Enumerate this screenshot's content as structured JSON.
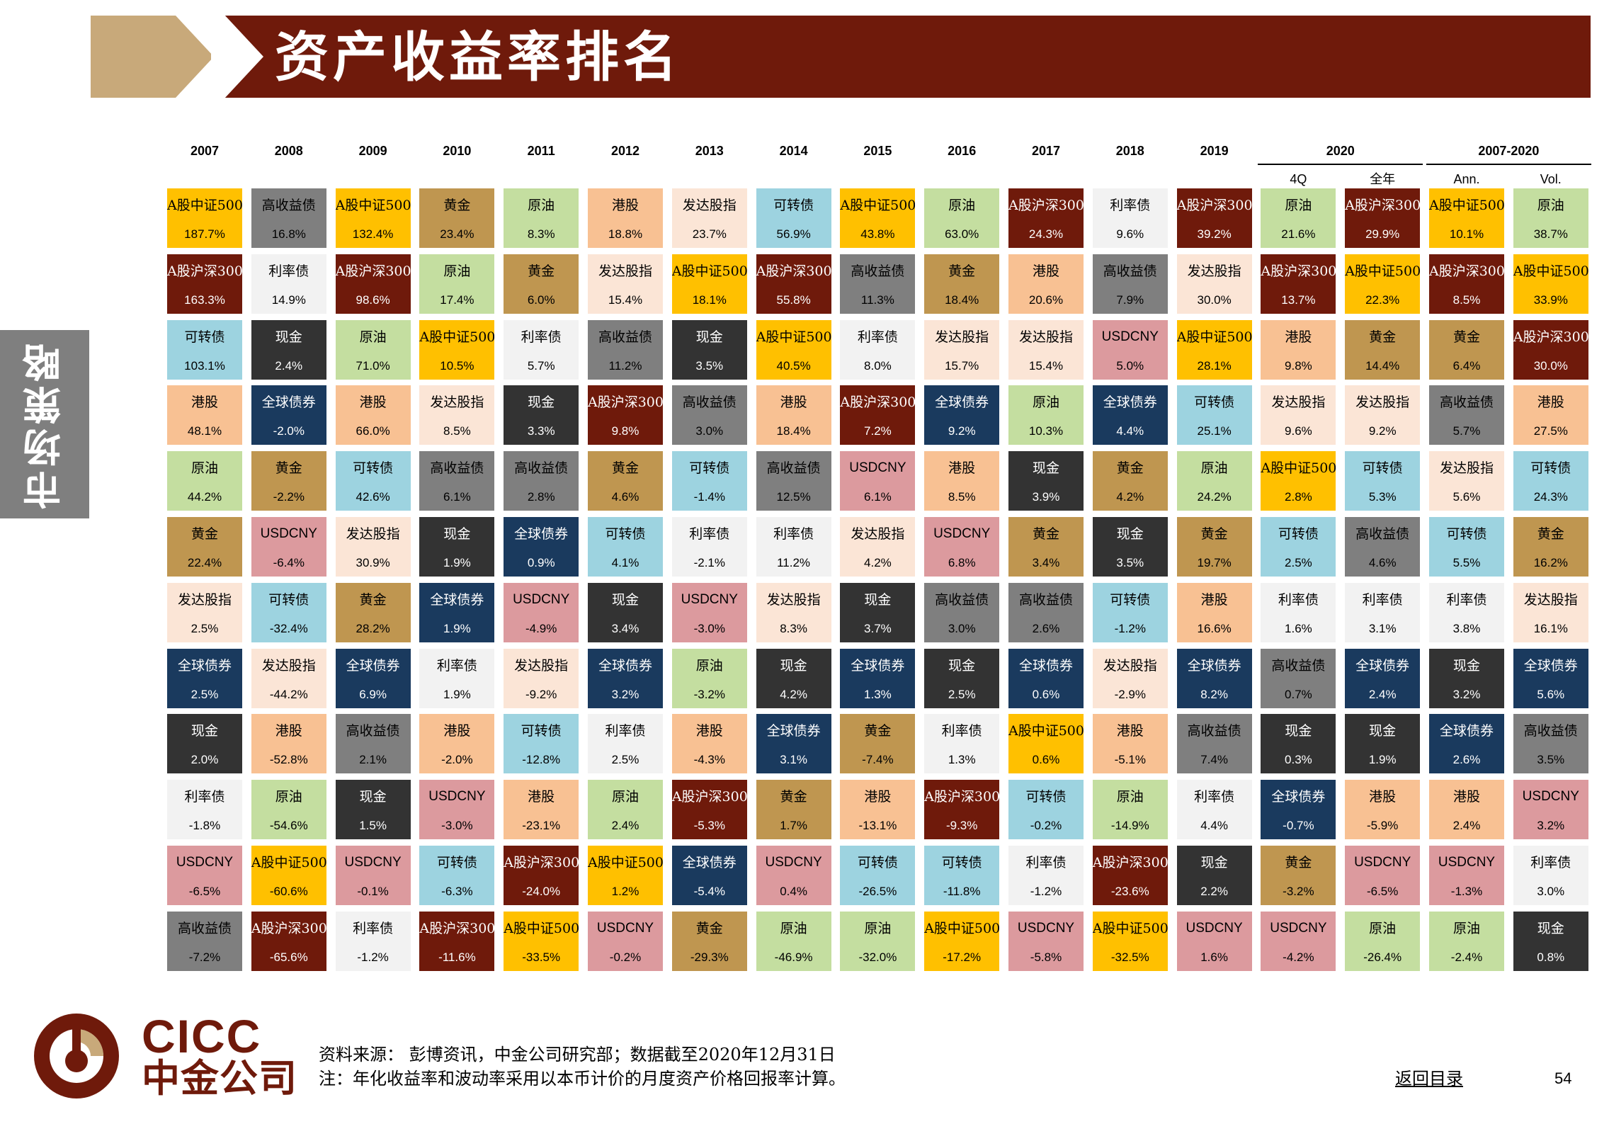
{
  "header": {
    "title": "资产收益率排名"
  },
  "sidebar": {
    "label": "市场策略"
  },
  "chart_data": {
    "type": "table",
    "columns": [
      {
        "top": "2007",
        "sub": ""
      },
      {
        "top": "2008",
        "sub": ""
      },
      {
        "top": "2009",
        "sub": ""
      },
      {
        "top": "2010",
        "sub": ""
      },
      {
        "top": "2011",
        "sub": ""
      },
      {
        "top": "2012",
        "sub": ""
      },
      {
        "top": "2013",
        "sub": ""
      },
      {
        "top": "2014",
        "sub": ""
      },
      {
        "top": "2015",
        "sub": ""
      },
      {
        "top": "2016",
        "sub": ""
      },
      {
        "top": "2017",
        "sub": ""
      },
      {
        "top": "2018",
        "sub": ""
      },
      {
        "top": "2019",
        "sub": ""
      },
      {
        "top": "",
        "sub": "4Q"
      },
      {
        "top": "",
        "sub": "全年"
      },
      {
        "top": "",
        "sub": "Ann."
      },
      {
        "top": "",
        "sub": "Vol."
      }
    ],
    "groups": [
      {
        "label": "2020",
        "first_col": 13,
        "last_col": 14
      },
      {
        "label": "2007-2020",
        "first_col": 15,
        "last_col": 16
      }
    ],
    "asset_colors": {
      "A股中证500": {
        "bg": "#ffc000",
        "fg": "#000000"
      },
      "A股沪深300": {
        "bg": "#6f1a0b",
        "fg": "#ffffff"
      },
      "高收益债": {
        "bg": "#7f7f7f",
        "fg": "#000000"
      },
      "黄金": {
        "bg": "#bf9650",
        "fg": "#000000"
      },
      "原油": {
        "bg": "#c4dea0",
        "fg": "#000000"
      },
      "港股": {
        "bg": "#f8c193",
        "fg": "#000000"
      },
      "发达股指": {
        "bg": "#fbe5d6",
        "fg": "#000000"
      },
      "可转债": {
        "bg": "#9dd3e0",
        "fg": "#000000"
      },
      "利率债": {
        "bg": "#f2f2f2",
        "fg": "#000000"
      },
      "现金": {
        "bg": "#333333",
        "fg": "#ffffff"
      },
      "全球债券": {
        "bg": "#1a3a5e",
        "fg": "#ffffff"
      },
      "USDCNY": {
        "bg": "#dc9a9e",
        "fg": "#000000"
      }
    },
    "columns_data": [
      [
        [
          "A股中证500",
          "187.7%"
        ],
        [
          "A股沪深300",
          "163.3%"
        ],
        [
          "可转债",
          "103.1%"
        ],
        [
          "港股",
          "48.1%"
        ],
        [
          "原油",
          "44.2%"
        ],
        [
          "黄金",
          "22.4%"
        ],
        [
          "发达股指",
          "2.5%"
        ],
        [
          "全球债券",
          "2.5%"
        ],
        [
          "现金",
          "2.0%"
        ],
        [
          "利率债",
          "-1.8%"
        ],
        [
          "USDCNY",
          "-6.5%"
        ],
        [
          "高收益债",
          "-7.2%"
        ]
      ],
      [
        [
          "高收益债",
          "16.8%"
        ],
        [
          "利率债",
          "14.9%"
        ],
        [
          "现金",
          "2.4%"
        ],
        [
          "全球债券",
          "-2.0%"
        ],
        [
          "黄金",
          "-2.2%"
        ],
        [
          "USDCNY",
          "-6.4%"
        ],
        [
          "可转债",
          "-32.4%"
        ],
        [
          "发达股指",
          "-44.2%"
        ],
        [
          "港股",
          "-52.8%"
        ],
        [
          "原油",
          "-54.6%"
        ],
        [
          "A股中证500",
          "-60.6%"
        ],
        [
          "A股沪深300",
          "-65.6%"
        ]
      ],
      [
        [
          "A股中证500",
          "132.4%"
        ],
        [
          "A股沪深300",
          "98.6%"
        ],
        [
          "原油",
          "71.0%"
        ],
        [
          "港股",
          "66.0%"
        ],
        [
          "可转债",
          "42.6%"
        ],
        [
          "发达股指",
          "30.9%"
        ],
        [
          "黄金",
          "28.2%"
        ],
        [
          "全球债券",
          "6.9%"
        ],
        [
          "高收益债",
          "2.1%"
        ],
        [
          "现金",
          "1.5%"
        ],
        [
          "USDCNY",
          "-0.1%"
        ],
        [
          "利率债",
          "-1.2%"
        ]
      ],
      [
        [
          "黄金",
          "23.4%"
        ],
        [
          "原油",
          "17.4%"
        ],
        [
          "A股中证500",
          "10.5%"
        ],
        [
          "发达股指",
          "8.5%"
        ],
        [
          "高收益债",
          "6.1%"
        ],
        [
          "现金",
          "1.9%"
        ],
        [
          "全球债券",
          "1.9%"
        ],
        [
          "利率债",
          "1.9%"
        ],
        [
          "港股",
          "-2.0%"
        ],
        [
          "USDCNY",
          "-3.0%"
        ],
        [
          "可转债",
          "-6.3%"
        ],
        [
          "A股沪深300",
          "-11.6%"
        ]
      ],
      [
        [
          "原油",
          "8.3%"
        ],
        [
          "黄金",
          "6.0%"
        ],
        [
          "利率债",
          "5.7%"
        ],
        [
          "现金",
          "3.3%"
        ],
        [
          "高收益债",
          "2.8%"
        ],
        [
          "全球债券",
          "0.9%"
        ],
        [
          "USDCNY",
          "-4.9%"
        ],
        [
          "发达股指",
          "-9.2%"
        ],
        [
          "可转债",
          "-12.8%"
        ],
        [
          "港股",
          "-23.1%"
        ],
        [
          "A股沪深300",
          "-24.0%"
        ],
        [
          "A股中证500",
          "-33.5%"
        ]
      ],
      [
        [
          "港股",
          "18.8%"
        ],
        [
          "发达股指",
          "15.4%"
        ],
        [
          "高收益债",
          "11.2%"
        ],
        [
          "A股沪深300",
          "9.8%"
        ],
        [
          "黄金",
          "4.6%"
        ],
        [
          "可转债",
          "4.1%"
        ],
        [
          "现金",
          "3.4%"
        ],
        [
          "全球债券",
          "3.2%"
        ],
        [
          "利率债",
          "2.5%"
        ],
        [
          "原油",
          "2.4%"
        ],
        [
          "A股中证500",
          "1.2%"
        ],
        [
          "USDCNY",
          "-0.2%"
        ]
      ],
      [
        [
          "发达股指",
          "23.7%"
        ],
        [
          "A股中证500",
          "18.1%"
        ],
        [
          "现金",
          "3.5%"
        ],
        [
          "高收益债",
          "3.0%"
        ],
        [
          "可转债",
          "-1.4%"
        ],
        [
          "利率债",
          "-2.1%"
        ],
        [
          "USDCNY",
          "-3.0%"
        ],
        [
          "原油",
          "-3.2%"
        ],
        [
          "港股",
          "-4.3%"
        ],
        [
          "A股沪深300",
          "-5.3%"
        ],
        [
          "全球债券",
          "-5.4%"
        ],
        [
          "黄金",
          "-29.3%"
        ]
      ],
      [
        [
          "可转债",
          "56.9%"
        ],
        [
          "A股沪深300",
          "55.8%"
        ],
        [
          "A股中证500",
          "40.5%"
        ],
        [
          "港股",
          "18.4%"
        ],
        [
          "高收益债",
          "12.5%"
        ],
        [
          "利率债",
          "11.2%"
        ],
        [
          "发达股指",
          "8.3%"
        ],
        [
          "现金",
          "4.2%"
        ],
        [
          "全球债券",
          "3.1%"
        ],
        [
          "黄金",
          "1.7%"
        ],
        [
          "USDCNY",
          "0.4%"
        ],
        [
          "原油",
          "-46.9%"
        ]
      ],
      [
        [
          "A股中证500",
          "43.8%"
        ],
        [
          "高收益债",
          "11.3%"
        ],
        [
          "利率债",
          "8.0%"
        ],
        [
          "A股沪深300",
          "7.2%"
        ],
        [
          "USDCNY",
          "6.1%"
        ],
        [
          "发达股指",
          "4.2%"
        ],
        [
          "现金",
          "3.7%"
        ],
        [
          "全球债券",
          "1.3%"
        ],
        [
          "黄金",
          "-7.4%"
        ],
        [
          "港股",
          "-13.1%"
        ],
        [
          "可转债",
          "-26.5%"
        ],
        [
          "原油",
          "-32.0%"
        ]
      ],
      [
        [
          "原油",
          "63.0%"
        ],
        [
          "黄金",
          "18.4%"
        ],
        [
          "发达股指",
          "15.7%"
        ],
        [
          "全球债券",
          "9.2%"
        ],
        [
          "港股",
          "8.5%"
        ],
        [
          "USDCNY",
          "6.8%"
        ],
        [
          "高收益债",
          "3.0%"
        ],
        [
          "现金",
          "2.5%"
        ],
        [
          "利率债",
          "1.3%"
        ],
        [
          "A股沪深300",
          "-9.3%"
        ],
        [
          "可转债",
          "-11.8%"
        ],
        [
          "A股中证500",
          "-17.2%"
        ]
      ],
      [
        [
          "A股沪深300",
          "24.3%"
        ],
        [
          "港股",
          "20.6%"
        ],
        [
          "发达股指",
          "15.4%"
        ],
        [
          "原油",
          "10.3%"
        ],
        [
          "现金",
          "3.9%"
        ],
        [
          "黄金",
          "3.4%"
        ],
        [
          "高收益债",
          "2.6%"
        ],
        [
          "全球债券",
          "0.6%"
        ],
        [
          "A股中证500",
          "0.6%"
        ],
        [
          "可转债",
          "-0.2%"
        ],
        [
          "利率债",
          "-1.2%"
        ],
        [
          "USDCNY",
          "-5.8%"
        ]
      ],
      [
        [
          "利率债",
          "9.6%"
        ],
        [
          "高收益债",
          "7.9%"
        ],
        [
          "USDCNY",
          "5.0%"
        ],
        [
          "全球债券",
          "4.4%"
        ],
        [
          "黄金",
          "4.2%"
        ],
        [
          "现金",
          "3.5%"
        ],
        [
          "可转债",
          "-1.2%"
        ],
        [
          "发达股指",
          "-2.9%"
        ],
        [
          "港股",
          "-5.1%"
        ],
        [
          "原油",
          "-14.9%"
        ],
        [
          "A股沪深300",
          "-23.6%"
        ],
        [
          "A股中证500",
          "-32.5%"
        ]
      ],
      [
        [
          "A股沪深300",
          "39.2%"
        ],
        [
          "发达股指",
          "30.0%"
        ],
        [
          "A股中证500",
          "28.1%"
        ],
        [
          "可转债",
          "25.1%"
        ],
        [
          "原油",
          "24.2%"
        ],
        [
          "黄金",
          "19.7%"
        ],
        [
          "港股",
          "16.6%"
        ],
        [
          "全球债券",
          "8.2%"
        ],
        [
          "高收益债",
          "7.4%"
        ],
        [
          "利率债",
          "4.4%"
        ],
        [
          "现金",
          "2.2%"
        ],
        [
          "USDCNY",
          "1.6%"
        ]
      ],
      [
        [
          "原油",
          "21.6%"
        ],
        [
          "A股沪深300",
          "13.7%"
        ],
        [
          "港股",
          "9.8%"
        ],
        [
          "发达股指",
          "9.6%"
        ],
        [
          "A股中证500",
          "2.8%"
        ],
        [
          "可转债",
          "2.5%"
        ],
        [
          "利率债",
          "1.6%"
        ],
        [
          "高收益债",
          "0.7%"
        ],
        [
          "现金",
          "0.3%"
        ],
        [
          "全球债券",
          "-0.7%"
        ],
        [
          "黄金",
          "-3.2%"
        ],
        [
          "USDCNY",
          "-4.2%"
        ]
      ],
      [
        [
          "A股沪深300",
          "29.9%"
        ],
        [
          "A股中证500",
          "22.3%"
        ],
        [
          "黄金",
          "14.4%"
        ],
        [
          "发达股指",
          "9.2%"
        ],
        [
          "可转债",
          "5.3%"
        ],
        [
          "高收益债",
          "4.6%"
        ],
        [
          "利率债",
          "3.1%"
        ],
        [
          "全球债券",
          "2.4%"
        ],
        [
          "现金",
          "1.9%"
        ],
        [
          "港股",
          "-5.9%"
        ],
        [
          "USDCNY",
          "-6.5%"
        ],
        [
          "原油",
          "-26.4%"
        ]
      ],
      [
        [
          "A股中证500",
          "10.1%"
        ],
        [
          "A股沪深300",
          "8.5%"
        ],
        [
          "黄金",
          "6.4%"
        ],
        [
          "高收益债",
          "5.7%"
        ],
        [
          "发达股指",
          "5.6%"
        ],
        [
          "可转债",
          "5.5%"
        ],
        [
          "利率债",
          "3.8%"
        ],
        [
          "现金",
          "3.2%"
        ],
        [
          "全球债券",
          "2.6%"
        ],
        [
          "港股",
          "2.4%"
        ],
        [
          "USDCNY",
          "-1.3%"
        ],
        [
          "原油",
          "-2.4%"
        ]
      ],
      [
        [
          "原油",
          "38.7%"
        ],
        [
          "A股中证500",
          "33.9%"
        ],
        [
          "A股沪深300",
          "30.0%"
        ],
        [
          "港股",
          "27.5%"
        ],
        [
          "可转债",
          "24.3%"
        ],
        [
          "黄金",
          "16.2%"
        ],
        [
          "发达股指",
          "16.1%"
        ],
        [
          "全球债券",
          "5.6%"
        ],
        [
          "高收益债",
          "3.5%"
        ],
        [
          "USDCNY",
          "3.2%"
        ],
        [
          "利率债",
          "3.0%"
        ],
        [
          "现金",
          "0.8%"
        ]
      ]
    ]
  },
  "footer": {
    "logo_en": "CICC",
    "logo_cn": "中金公司",
    "source": "资料来源： 彭博资讯，中金公司研究部；数据截至2020年12月31日",
    "note": "注：年化收益率和波动率采用以本币计价的月度资产价格回报率计算。",
    "back_link": "返回目录",
    "page_number": "54"
  },
  "colors": {
    "title_bar": "#6f1a0b",
    "chevron": "#c8a97a",
    "side_tab": "#7f7f7f",
    "logo": "#6f1a0b"
  }
}
